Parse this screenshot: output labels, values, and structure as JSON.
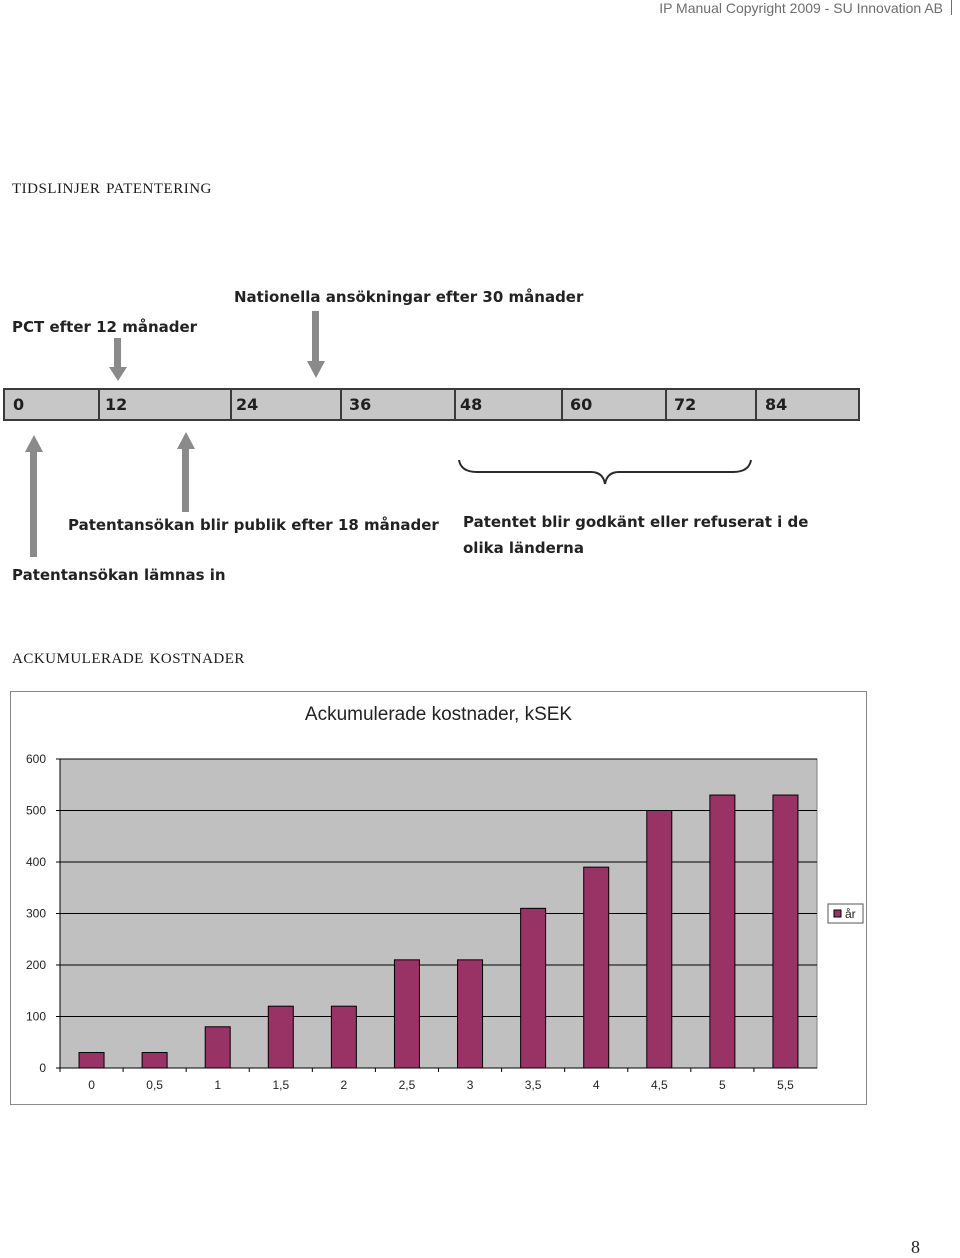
{
  "header": {
    "text": "IP Manual Copyright 2009 - SU Innovation AB"
  },
  "sections": {
    "timeline_title": "Tidslinjer patentering",
    "costs_title": "Ackumulerade kostnader"
  },
  "timeline": {
    "pct_label": "PCT efter 12 månader",
    "national_label": "Nationella ansökningar efter 30 månader",
    "ticks": [
      "0",
      "12",
      "24",
      "36",
      "48",
      "60",
      "72",
      "84"
    ],
    "published_label": "Patentansökan blir publik efter 18 månader",
    "filed_label": "Patentansökan lämnas in",
    "granted_label": "Patentet blir godkänt eller refuserat i de olika länderna"
  },
  "chart_data": {
    "type": "bar",
    "title": "Ackumulerade kostnader, kSEK",
    "categories": [
      "0",
      "0,5",
      "1",
      "1,5",
      "2",
      "2,5",
      "3",
      "3,5",
      "4",
      "4,5",
      "5",
      "5,5"
    ],
    "series": [
      {
        "name": "år",
        "values": [
          30,
          30,
          80,
          120,
          120,
          210,
          210,
          310,
          390,
          500,
          530,
          530
        ]
      }
    ],
    "ylim": [
      0,
      600
    ],
    "yticks": [
      "0",
      "100",
      "200",
      "300",
      "400",
      "500",
      "600"
    ],
    "bar_color": "#993366",
    "plot_background": "#c0c0c0",
    "grid": true,
    "legend_position": "right"
  },
  "page": {
    "number": "8"
  }
}
